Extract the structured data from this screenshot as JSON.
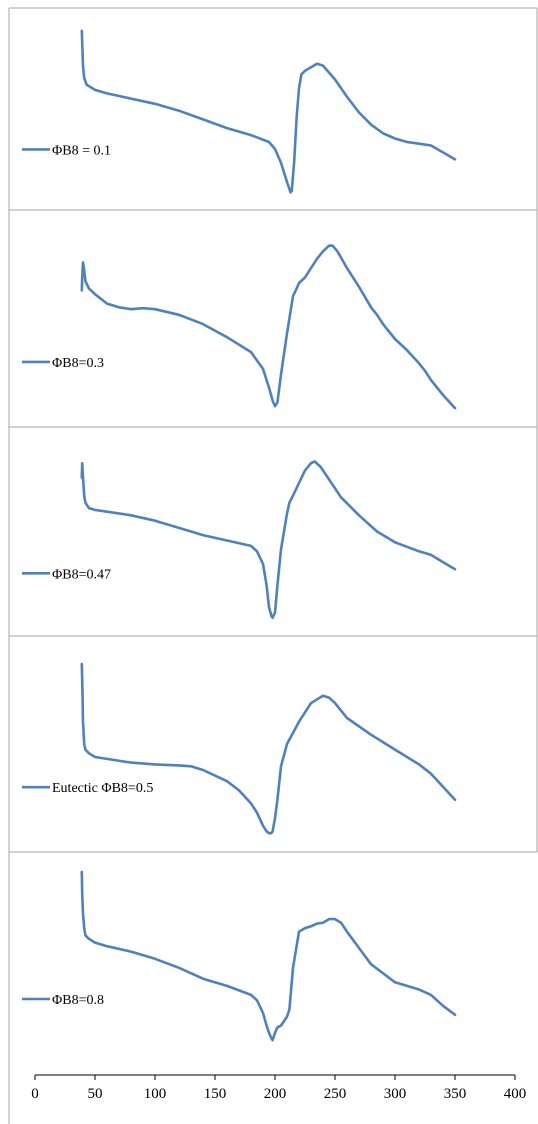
{
  "chart_data": {
    "type": "line",
    "layout": "vertically stacked panels sharing one x-axis",
    "line_color": "#4f81bd",
    "frame_color": "#a6a6a6",
    "legend_placement": "left, inside each panel",
    "grid": false,
    "x_axis": {
      "label": "",
      "range": [
        0,
        400
      ],
      "ticks": [
        0,
        50,
        100,
        150,
        200,
        250,
        300,
        350,
        400
      ],
      "tick_labels": [
        "0",
        "50",
        "100",
        "150",
        "200",
        "250",
        "300",
        "350",
        "400"
      ]
    },
    "y_axis": {
      "label": "",
      "ticks_shown": false
    },
    "panels": [
      {
        "series_name": "ΦB8 = 0.1",
        "x": [
          39,
          39.5,
          40,
          41,
          43,
          50,
          60,
          80,
          100,
          120,
          140,
          160,
          180,
          195,
          200,
          205,
          210,
          213,
          214,
          216,
          218,
          220,
          222,
          225,
          230,
          235,
          240,
          250,
          260,
          270,
          280,
          290,
          300,
          310,
          320,
          330,
          340,
          350
        ],
        "y": [
          0.95,
          0.85,
          0.75,
          0.68,
          0.64,
          0.61,
          0.59,
          0.56,
          0.53,
          0.49,
          0.44,
          0.39,
          0.35,
          0.31,
          0.27,
          0.19,
          0.08,
          0.02,
          0.03,
          0.2,
          0.45,
          0.62,
          0.7,
          0.72,
          0.74,
          0.76,
          0.75,
          0.67,
          0.57,
          0.48,
          0.41,
          0.36,
          0.33,
          0.31,
          0.3,
          0.29,
          0.25,
          0.21
        ]
      },
      {
        "series_name": "ΦB8=0.3",
        "x": [
          39,
          39.3,
          40,
          41,
          42,
          45,
          50,
          60,
          70,
          80,
          90,
          100,
          120,
          140,
          160,
          180,
          190,
          195,
          198,
          200,
          202,
          205,
          210,
          215,
          218,
          220,
          225,
          230,
          235,
          240,
          245,
          248,
          252,
          260,
          270,
          280,
          285,
          290,
          300,
          310,
          320,
          325,
          330,
          340,
          350
        ],
        "y": [
          0.65,
          0.72,
          0.8,
          0.76,
          0.7,
          0.66,
          0.63,
          0.58,
          0.56,
          0.55,
          0.555,
          0.55,
          0.52,
          0.47,
          0.4,
          0.32,
          0.23,
          0.13,
          0.06,
          0.03,
          0.05,
          0.2,
          0.42,
          0.62,
          0.66,
          0.69,
          0.72,
          0.77,
          0.82,
          0.86,
          0.89,
          0.89,
          0.86,
          0.77,
          0.67,
          0.56,
          0.52,
          0.47,
          0.39,
          0.33,
          0.26,
          0.22,
          0.17,
          0.09,
          0.02
        ]
      },
      {
        "series_name": "ΦB8=0.47",
        "x": [
          39,
          39.3,
          40,
          41,
          42,
          45,
          50,
          60,
          80,
          100,
          120,
          140,
          160,
          180,
          185,
          190,
          193,
          195,
          197,
          198,
          200,
          202,
          205,
          208,
          210,
          212,
          215,
          220,
          225,
          230,
          233,
          238,
          245,
          255,
          270,
          285,
          300,
          320,
          330,
          340,
          350
        ],
        "y": [
          0.8,
          0.88,
          0.8,
          0.7,
          0.66,
          0.63,
          0.62,
          0.61,
          0.59,
          0.56,
          0.52,
          0.48,
          0.45,
          0.42,
          0.39,
          0.32,
          0.2,
          0.08,
          0.03,
          0.02,
          0.05,
          0.2,
          0.4,
          0.52,
          0.6,
          0.66,
          0.7,
          0.77,
          0.84,
          0.88,
          0.89,
          0.86,
          0.79,
          0.69,
          0.59,
          0.5,
          0.44,
          0.39,
          0.37,
          0.33,
          0.29
        ]
      },
      {
        "series_name": "Eutectic ΦB8=0.5",
        "x": [
          39,
          39.5,
          40,
          41,
          42,
          45,
          50,
          60,
          80,
          100,
          120,
          130,
          140,
          160,
          170,
          180,
          185,
          190,
          193,
          195,
          197,
          198,
          200,
          202,
          205,
          210,
          215,
          220,
          230,
          240,
          245,
          250,
          255,
          260,
          280,
          300,
          320,
          330,
          340,
          350
        ],
        "y": [
          0.93,
          0.8,
          0.62,
          0.5,
          0.47,
          0.45,
          0.43,
          0.42,
          0.4,
          0.39,
          0.385,
          0.38,
          0.36,
          0.3,
          0.25,
          0.18,
          0.13,
          0.06,
          0.03,
          0.02,
          0.02,
          0.03,
          0.1,
          0.2,
          0.38,
          0.5,
          0.56,
          0.62,
          0.72,
          0.76,
          0.75,
          0.72,
          0.68,
          0.64,
          0.55,
          0.47,
          0.39,
          0.34,
          0.27,
          0.2
        ]
      },
      {
        "series_name": "ΦB8=0.8",
        "x": [
          39,
          39.3,
          40,
          41,
          42,
          45,
          50,
          60,
          80,
          100,
          120,
          140,
          160,
          180,
          185,
          190,
          193,
          195,
          197,
          198,
          200,
          202,
          205,
          210,
          212,
          215,
          220,
          225,
          230,
          235,
          240,
          245,
          250,
          255,
          260,
          270,
          280,
          300,
          320,
          330,
          340,
          350
        ],
        "y": [
          0.97,
          0.85,
          0.74,
          0.66,
          0.62,
          0.6,
          0.58,
          0.56,
          0.53,
          0.49,
          0.44,
          0.38,
          0.34,
          0.29,
          0.26,
          0.19,
          0.12,
          0.08,
          0.05,
          0.04,
          0.08,
          0.11,
          0.12,
          0.17,
          0.21,
          0.44,
          0.64,
          0.66,
          0.67,
          0.685,
          0.69,
          0.71,
          0.71,
          0.69,
          0.64,
          0.55,
          0.46,
          0.36,
          0.32,
          0.29,
          0.23,
          0.18
        ]
      }
    ]
  }
}
